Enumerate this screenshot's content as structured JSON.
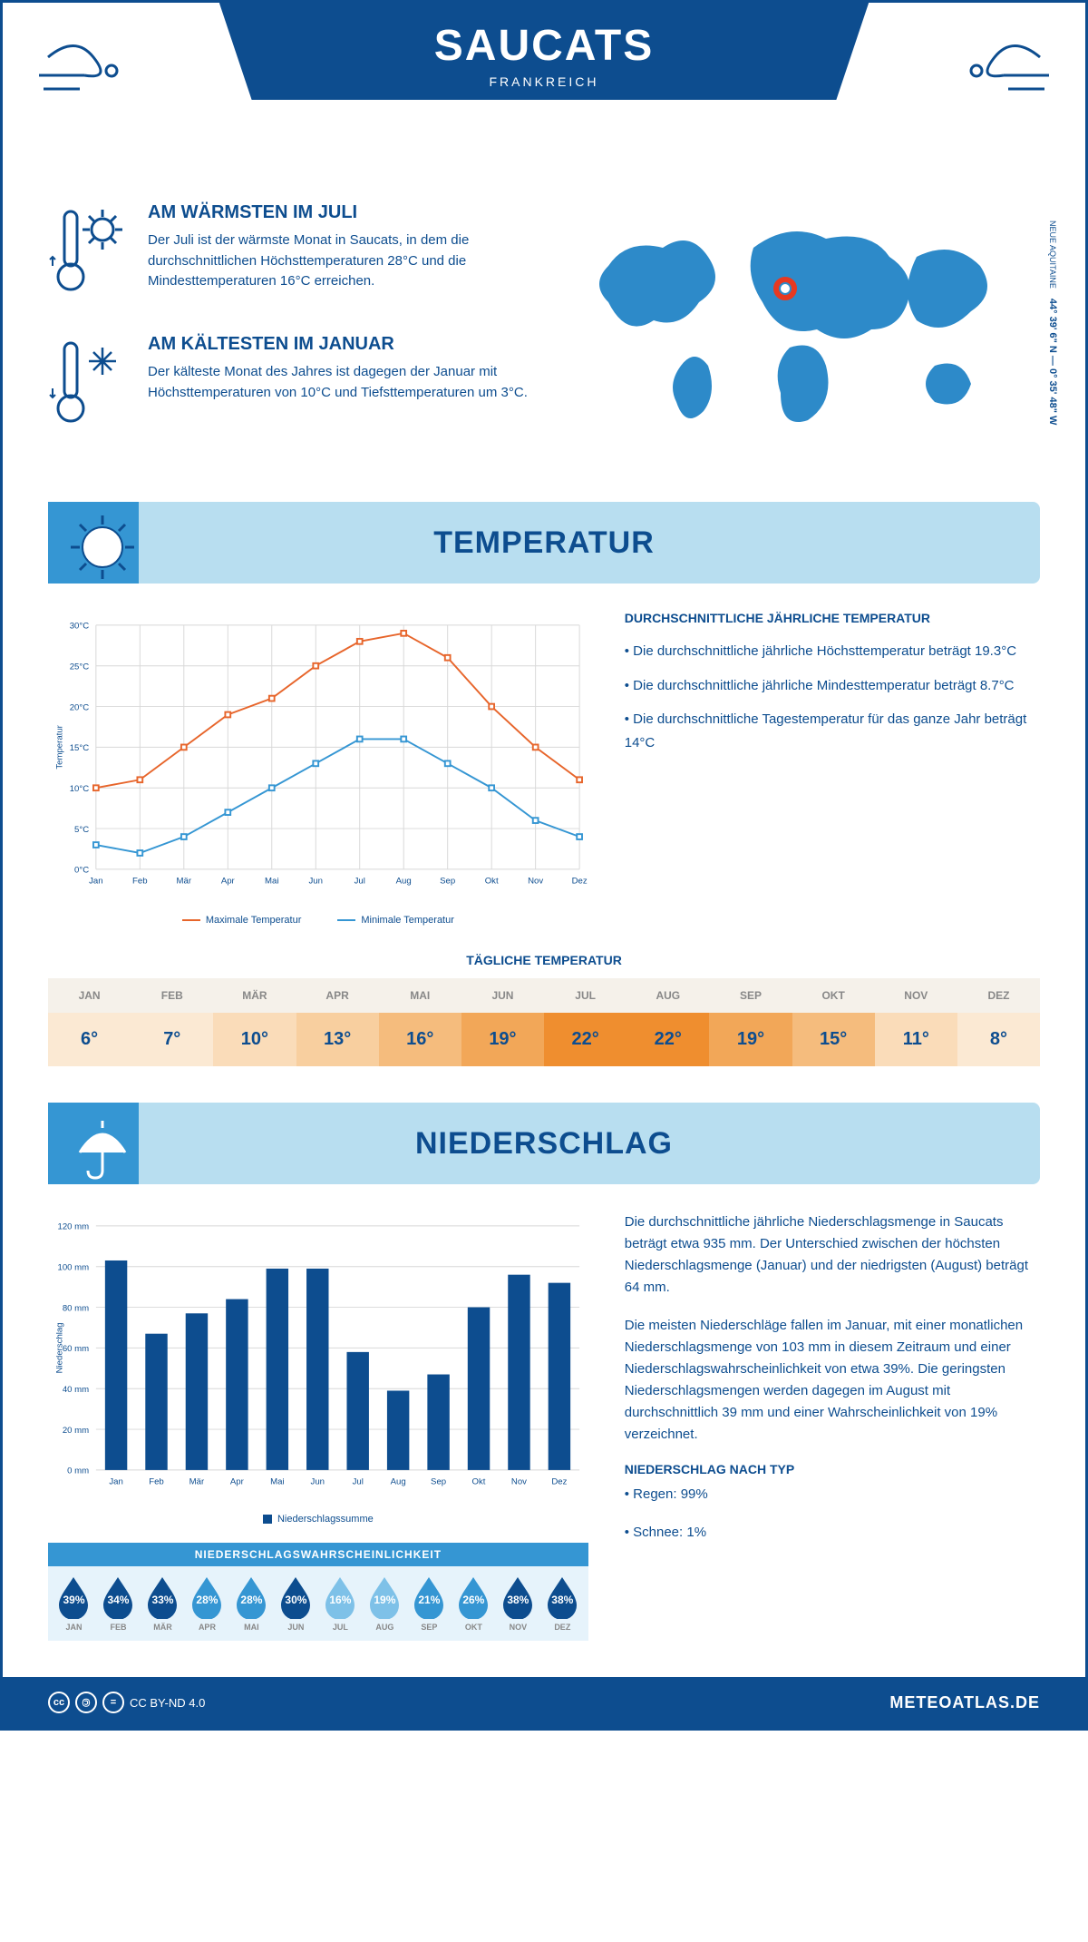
{
  "header": {
    "title": "SAUCATS",
    "subtitle": "FRANKREICH"
  },
  "coords": {
    "lat": "44° 39' 6\" N",
    "lon": "0° 35' 48\" W",
    "region": "NEUE AQUITAINE"
  },
  "warm": {
    "title": "AM WÄRMSTEN IM JULI",
    "text": "Der Juli ist der wärmste Monat in Saucats, in dem die durchschnittlichen Höchsttemperaturen 28°C und die Mindesttemperaturen 16°C erreichen."
  },
  "cold": {
    "title": "AM KÄLTESTEN IM JANUAR",
    "text": "Der kälteste Monat des Jahres ist dagegen der Januar mit Höchsttemperaturen von 10°C und Tiefsttemperaturen um 3°C."
  },
  "temp_section_title": "TEMPERATUR",
  "temp_chart": {
    "type": "line",
    "months": [
      "Jan",
      "Feb",
      "Mär",
      "Apr",
      "Mai",
      "Jun",
      "Jul",
      "Aug",
      "Sep",
      "Okt",
      "Nov",
      "Dez"
    ],
    "max": [
      10,
      11,
      15,
      19,
      21,
      25,
      28,
      29,
      26,
      20,
      15,
      11
    ],
    "min": [
      3,
      2,
      4,
      7,
      10,
      13,
      16,
      16,
      13,
      10,
      6,
      4
    ],
    "ylim": [
      0,
      30
    ],
    "ytick_step": 5,
    "ylabel": "Temperatur",
    "max_color": "#e7652b",
    "min_color": "#3596d3",
    "legend_max": "Maximale Temperatur",
    "legend_min": "Minimale Temperatur",
    "grid_color": "#d8d8d8",
    "line_width": 2,
    "marker": "square"
  },
  "temp_text": {
    "title": "DURCHSCHNITTLICHE JÄHRLICHE TEMPERATUR",
    "b1": "• Die durchschnittliche jährliche Höchsttemperatur beträgt 19.3°C",
    "b2": "• Die durchschnittliche jährliche Mindesttemperatur beträgt 8.7°C",
    "b3": "• Die durchschnittliche Tagestemperatur für das ganze Jahr beträgt 14°C"
  },
  "daily": {
    "title": "TÄGLICHE TEMPERATUR",
    "months": [
      "JAN",
      "FEB",
      "MÄR",
      "APR",
      "MAI",
      "JUN",
      "JUL",
      "AUG",
      "SEP",
      "OKT",
      "NOV",
      "DEZ"
    ],
    "values": [
      "6°",
      "7°",
      "10°",
      "13°",
      "16°",
      "19°",
      "22°",
      "22°",
      "19°",
      "15°",
      "11°",
      "8°"
    ],
    "colors": [
      "#fbe9d3",
      "#fbe9d3",
      "#fadcb9",
      "#f8cf9f",
      "#f5bc7d",
      "#f2a758",
      "#ef8e2f",
      "#ef8e2f",
      "#f2a758",
      "#f5bc7d",
      "#fadcb9",
      "#fbe9d3"
    ],
    "month_bg": "#f5f1ea"
  },
  "precip_section_title": "NIEDERSCHLAG",
  "precip_chart": {
    "type": "bar",
    "months": [
      "Jan",
      "Feb",
      "Mär",
      "Apr",
      "Mai",
      "Jun",
      "Jul",
      "Aug",
      "Sep",
      "Okt",
      "Nov",
      "Dez"
    ],
    "values": [
      103,
      67,
      77,
      84,
      99,
      99,
      58,
      39,
      47,
      80,
      96,
      92
    ],
    "ylim": [
      0,
      120
    ],
    "ytick_step": 20,
    "ylabel": "Niederschlag",
    "bar_color": "#0d4d8f",
    "legend": "Niederschlagssumme",
    "grid_color": "#d8d8d8",
    "bar_width": 0.55
  },
  "precip_text": {
    "p1": "Die durchschnittliche jährliche Niederschlagsmenge in Saucats beträgt etwa 935 mm. Der Unterschied zwischen der höchsten Niederschlagsmenge (Januar) und der niedrigsten (August) beträgt 64 mm.",
    "p2": "Die meisten Niederschläge fallen im Januar, mit einer monatlichen Niederschlagsmenge von 103 mm in diesem Zeitraum und einer Niederschlagswahrscheinlichkeit von etwa 39%. Die geringsten Niederschlagsmengen werden dagegen im August mit durchschnittlich 39 mm und einer Wahrscheinlichkeit von 19% verzeichnet.",
    "type_title": "NIEDERSCHLAG NACH TYP",
    "rain": "• Regen: 99%",
    "snow": "• Schnee: 1%"
  },
  "prob": {
    "title": "NIEDERSCHLAGSWAHRSCHEINLICHKEIT",
    "months": [
      "JAN",
      "FEB",
      "MÄR",
      "APR",
      "MAI",
      "JUN",
      "JUL",
      "AUG",
      "SEP",
      "OKT",
      "NOV",
      "DEZ"
    ],
    "values": [
      "39%",
      "34%",
      "33%",
      "28%",
      "28%",
      "30%",
      "16%",
      "19%",
      "21%",
      "26%",
      "38%",
      "38%"
    ],
    "colors": [
      "#0d4d8f",
      "#0d4d8f",
      "#0d4d8f",
      "#3596d3",
      "#3596d3",
      "#0d4d8f",
      "#7ec1e8",
      "#7ec1e8",
      "#3596d3",
      "#3596d3",
      "#0d4d8f",
      "#0d4d8f"
    ]
  },
  "footer": {
    "license": "CC BY-ND 4.0",
    "site": "METEOATLAS.DE"
  }
}
